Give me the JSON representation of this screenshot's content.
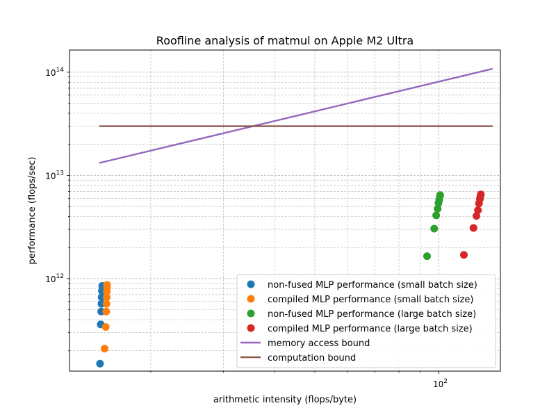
{
  "chart_data": {
    "type": "scatter",
    "title": "Roofline analysis of matmul on Apple M2 Ultra",
    "xlabel": "arithmetic intensity (flops/byte)",
    "ylabel": "performance (flops/sec)",
    "xscale": "log",
    "yscale": "log",
    "xlim": [
      12.7,
      141
    ],
    "ylim": [
      127000000000.0,
      164000000000000.0
    ],
    "grid": "both (major and minor), dashed gray",
    "legend_position": "bottom-right",
    "x_ticks": [
      {
        "value": 100,
        "base": "10",
        "exp": "2"
      }
    ],
    "y_ticks": [
      {
        "value": 1000000000000.0,
        "base": "10",
        "exp": "12"
      },
      {
        "value": 10000000000000.0,
        "base": "10",
        "exp": "13"
      },
      {
        "value": 100000000000000.0,
        "base": "10",
        "exp": "14"
      }
    ],
    "series": [
      {
        "name": "non-fused MLP performance (small batch size)",
        "kind": "scatter",
        "color": "#1f77b4",
        "points": [
          [
            15.06,
            150000000000.0
          ],
          [
            15.12,
            360000000000.0
          ],
          [
            15.16,
            480000000000.0
          ],
          [
            15.18,
            570000000000.0
          ],
          [
            15.2,
            660000000000.0
          ],
          [
            15.22,
            760000000000.0
          ],
          [
            15.25,
            850000000000.0
          ]
        ]
      },
      {
        "name": "compiled MLP performance (small batch size)",
        "kind": "scatter",
        "color": "#ff7f0e",
        "points": [
          [
            15.45,
            210000000000.0
          ],
          [
            15.55,
            340000000000.0
          ],
          [
            15.6,
            480000000000.0
          ],
          [
            15.62,
            570000000000.0
          ],
          [
            15.64,
            660000000000.0
          ],
          [
            15.65,
            750000000000.0
          ],
          [
            15.66,
            820000000000.0
          ],
          [
            15.67,
            870000000000.0
          ]
        ]
      },
      {
        "name": "non-fused MLP performance (large batch size)",
        "kind": "scatter",
        "color": "#2ca02c",
        "points": [
          [
            93.6,
            1650000000000.0
          ],
          [
            97.4,
            3050000000000.0
          ],
          [
            98.5,
            4100000000000.0
          ],
          [
            99.3,
            4750000000000.0
          ],
          [
            99.8,
            5400000000000.0
          ],
          [
            100.2,
            5800000000000.0
          ],
          [
            100.5,
            6200000000000.0
          ],
          [
            100.7,
            6450000000000.0
          ]
        ]
      },
      {
        "name": "compiled MLP performance (large batch size)",
        "kind": "scatter",
        "color": "#d62728",
        "points": [
          [
            115,
            1700000000000.0
          ],
          [
            121.3,
            3100000000000.0
          ],
          [
            123.3,
            4050000000000.0
          ],
          [
            124.4,
            4600000000000.0
          ],
          [
            125.1,
            5350000000000.0
          ],
          [
            125.7,
            5900000000000.0
          ],
          [
            126.1,
            6300000000000.0
          ],
          [
            126.4,
            6550000000000.0
          ]
        ]
      },
      {
        "name": "memory access bound",
        "kind": "line",
        "color": "#9467bd",
        "points": [
          [
            15,
            13200000000000.0
          ],
          [
            135,
            108000000000000.0
          ]
        ]
      },
      {
        "name": "computation bound",
        "kind": "line",
        "color": "#8c564b",
        "points": [
          [
            15,
            30000000000000.0
          ],
          [
            135,
            30000000000000.0
          ]
        ]
      }
    ]
  }
}
